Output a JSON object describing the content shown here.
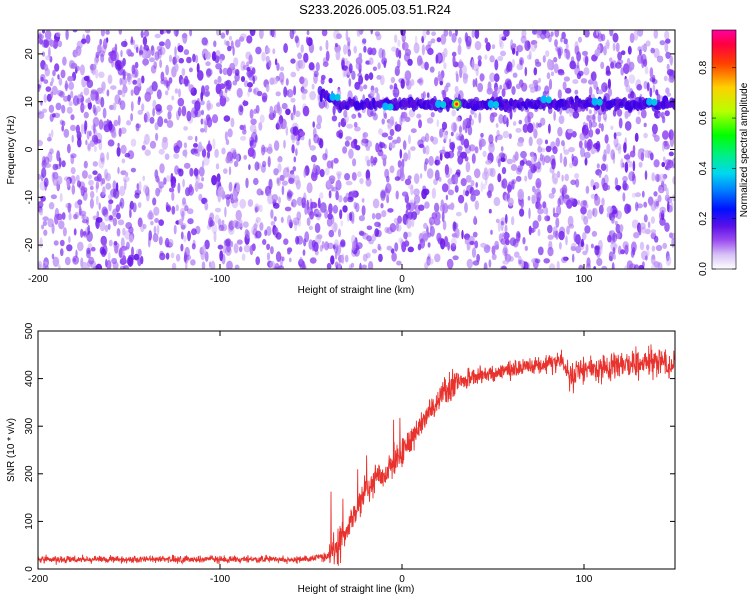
{
  "title": "S233.2026.005.03.51.R24",
  "colors": {
    "snr_line": "#e8322d",
    "ridge": "#5a10e0",
    "background_speckle": "#7a2df0",
    "colormap": [
      "#ffffff",
      "#c9a6f2",
      "#8a35ef",
      "#3a00e8",
      "#0030ff",
      "#00b4ff",
      "#00e0a0",
      "#00ff00",
      "#d8ff00",
      "#ffb000",
      "#ff0000",
      "#ff0090"
    ]
  },
  "chart_data": [
    {
      "type": "heatmap",
      "xlabel": "Height of straight line (km)",
      "ylabel": "Frequency (Hz)",
      "xlim": [
        -200,
        150
      ],
      "ylim": [
        -25,
        25
      ],
      "xticks": [
        -200,
        -100,
        0,
        100
      ],
      "yticks": [
        -20,
        -10,
        0,
        10,
        20
      ],
      "colorbar": {
        "label": "Normalized spectral amplitude",
        "range": [
          0,
          0.95
        ],
        "ticks": [
          0.0,
          0.2,
          0.4,
          0.6,
          0.8
        ]
      },
      "ridge": {
        "x_start": -45,
        "x_end": 150,
        "frequency_start": 12,
        "frequency_level": 9.5
      },
      "peaks": [
        {
          "x": -37,
          "y": 11,
          "amplitude": 0.3
        },
        {
          "x": -8,
          "y": 9,
          "amplitude": 0.3
        },
        {
          "x": 21,
          "y": 9.5,
          "amplitude": 0.3
        },
        {
          "x": 30,
          "y": 9.5,
          "amplitude": 0.9
        },
        {
          "x": 50,
          "y": 9.5,
          "amplitude": 0.3
        },
        {
          "x": 79,
          "y": 10.5,
          "amplitude": 0.3
        },
        {
          "x": 107,
          "y": 10,
          "amplitude": 0.3
        },
        {
          "x": 137,
          "y": 10,
          "amplitude": 0.3
        }
      ],
      "grid": false
    },
    {
      "type": "line",
      "xlabel": "Height of straight line (km)",
      "ylabel": "SNR (10 * v/v)",
      "xlim": [
        -200,
        150
      ],
      "ylim": [
        0,
        500
      ],
      "xticks": [
        -200,
        -100,
        0,
        100
      ],
      "yticks": [
        0,
        100,
        200,
        300,
        400,
        500
      ],
      "series": [
        {
          "x": [
            -200,
            -150,
            -100,
            -60,
            -42,
            -35,
            -30,
            -25,
            -20,
            -15,
            -10,
            -5,
            0,
            5,
            10,
            15,
            20,
            25,
            30,
            40,
            50,
            60,
            70,
            80,
            88,
            92,
            100,
            110,
            120,
            130,
            140,
            150
          ],
          "y": [
            20,
            20,
            20,
            20,
            25,
            45,
            80,
            130,
            165,
            185,
            200,
            225,
            240,
            275,
            300,
            330,
            355,
            375,
            390,
            405,
            410,
            418,
            425,
            430,
            440,
            400,
            420,
            425,
            430,
            430,
            435,
            430
          ]
        }
      ],
      "grid": false
    }
  ]
}
